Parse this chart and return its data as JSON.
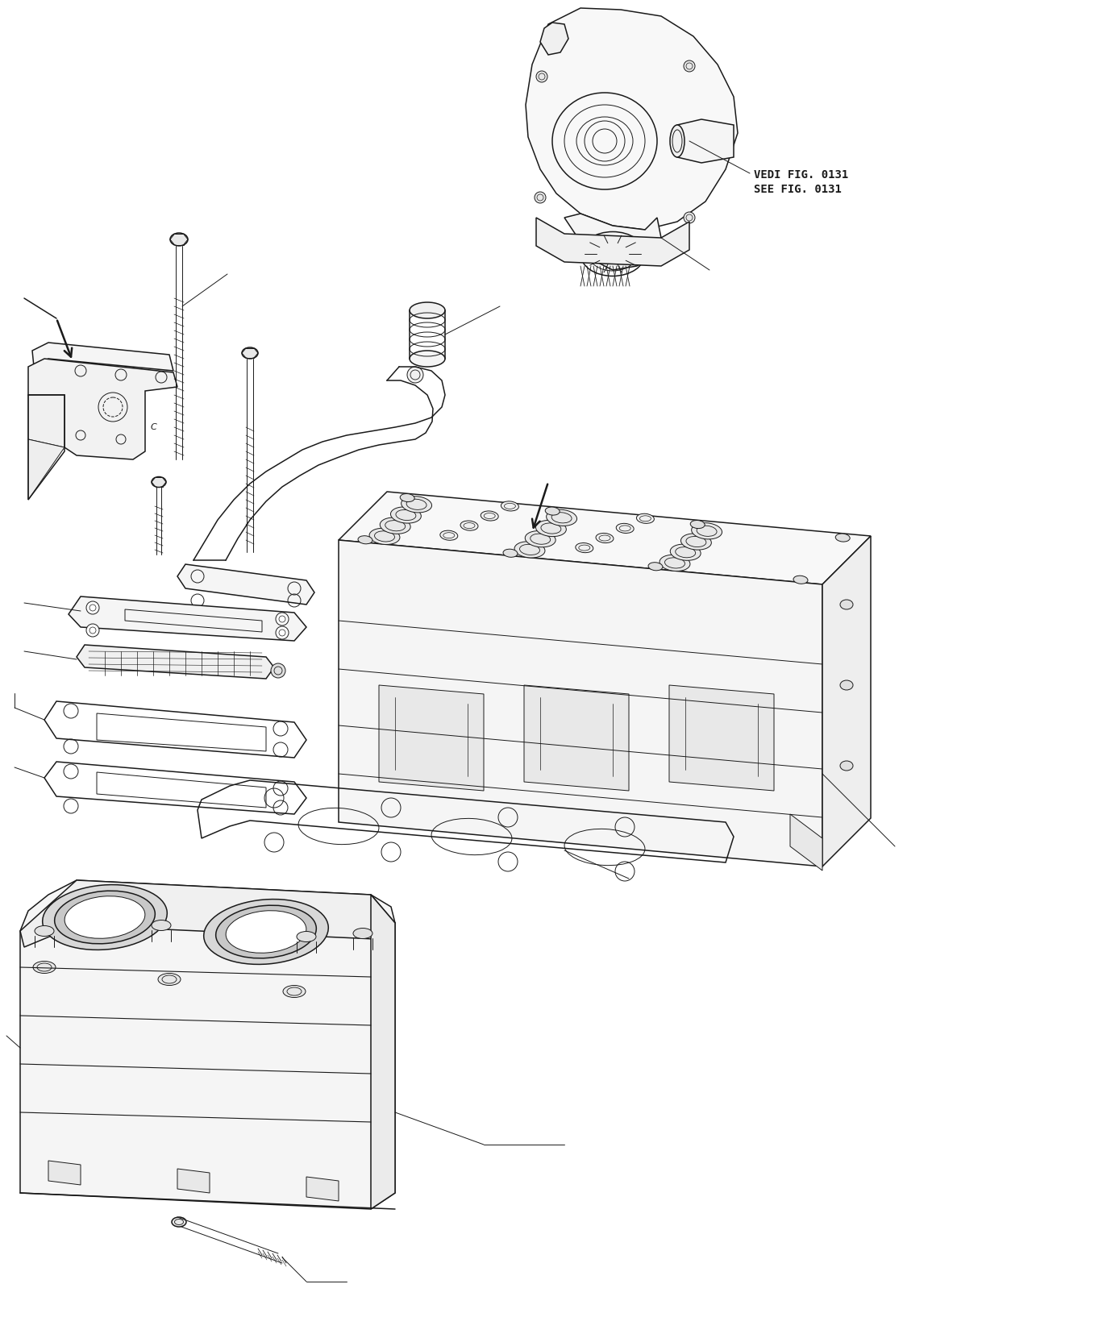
{
  "background_color": "#ffffff",
  "line_color": "#1a1a1a",
  "text_color": "#1a1a1a",
  "label1": "VEDI FIG. 0131",
  "label2": "SEE FIG. 0131",
  "font_size_labels": 10,
  "figsize": [
    13.78,
    16.55
  ],
  "dpi": 100,
  "lw_thin": 0.7,
  "lw_med": 1.1,
  "lw_thick": 1.8
}
